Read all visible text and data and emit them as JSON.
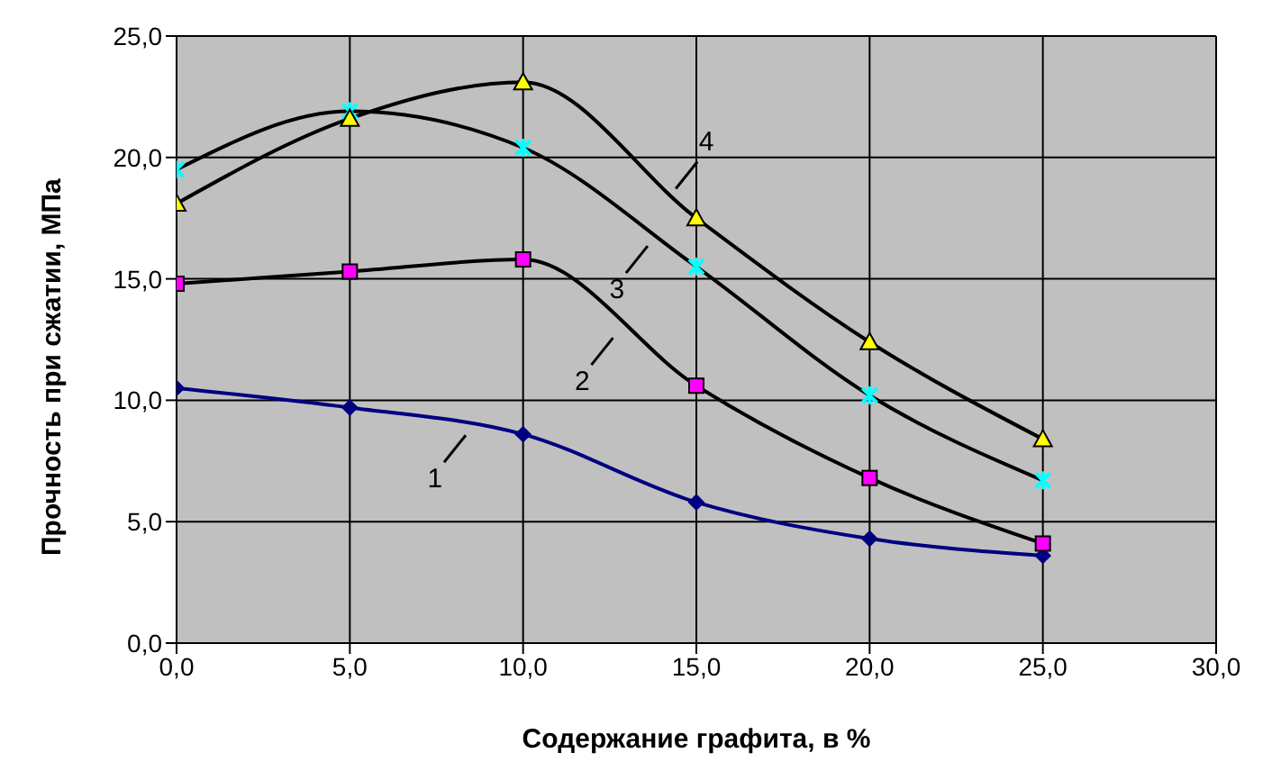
{
  "chart_data": {
    "type": "line",
    "xlabel": "Содержание графита, в %",
    "ylabel": "Прочность при сжатии, МПа",
    "xlim": [
      0,
      30
    ],
    "xticks": [
      {
        "value": 0,
        "label": "0,0"
      },
      {
        "value": 5,
        "label": "5,0"
      },
      {
        "value": 10,
        "label": "10,0"
      },
      {
        "value": 15,
        "label": "15,0"
      },
      {
        "value": 20,
        "label": "20,0"
      },
      {
        "value": 25,
        "label": "25,0"
      },
      {
        "value": 30,
        "label": "30,0"
      }
    ],
    "ylim": [
      0,
      25
    ],
    "yticks": [
      {
        "value": 0,
        "label": "0,0"
      },
      {
        "value": 5,
        "label": "5,0"
      },
      {
        "value": 10,
        "label": "10,0"
      },
      {
        "value": 15,
        "label": "15,0"
      },
      {
        "value": 20,
        "label": "20,0"
      },
      {
        "value": 25,
        "label": "25,0"
      }
    ],
    "grid": true,
    "legend": false,
    "line_style": "solid",
    "x": [
      0,
      5,
      10,
      15,
      20,
      25
    ],
    "series": [
      {
        "color": "#000080",
        "marker": "diamond",
        "values": [
          10.5,
          9.7,
          8.6,
          5.8,
          4.3,
          3.6
        ]
      },
      {
        "color": "#ff00ff",
        "marker": "square",
        "values": [
          14.8,
          15.3,
          15.8,
          10.6,
          6.8,
          4.1
        ]
      },
      {
        "color": "#00ffff",
        "marker": "cross",
        "values": [
          19.5,
          21.9,
          20.4,
          15.5,
          10.2,
          6.7
        ]
      },
      {
        "color": "#ffff00",
        "marker": "triangle",
        "values": [
          18.1,
          21.6,
          23.1,
          17.5,
          12.4,
          8.4
        ]
      }
    ],
    "annotations": [
      "1",
      "2",
      "3",
      "4"
    ]
  }
}
